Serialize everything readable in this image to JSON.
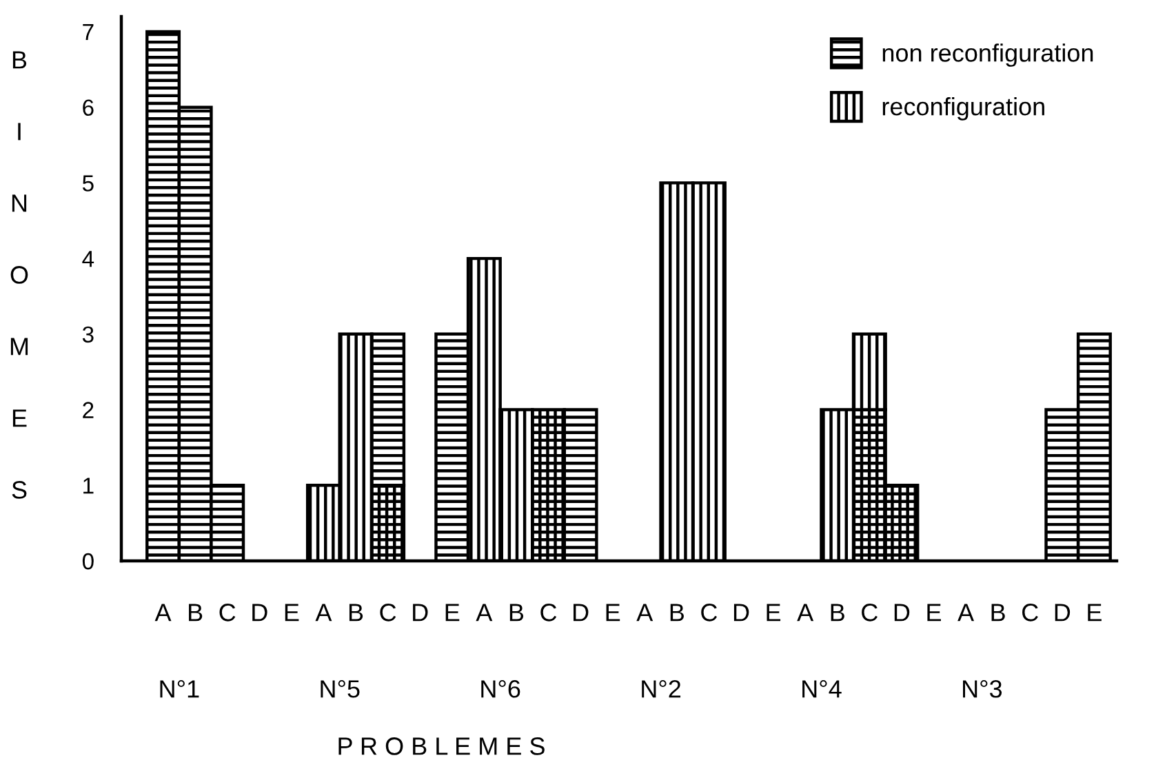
{
  "chart_data": {
    "type": "bar",
    "stacked": true,
    "ylabel": "BINOMES",
    "xlabel": "P R O B L E M E S",
    "categories": [
      "A",
      "B",
      "C",
      "D",
      "E",
      "A",
      "B",
      "C",
      "D",
      "E",
      "A",
      "B",
      "C",
      "D",
      "E",
      "A",
      "B",
      "C",
      "D",
      "E",
      "A",
      "B",
      "C",
      "D",
      "E",
      "A",
      "B",
      "C",
      "D",
      "E"
    ],
    "annotations": [
      "N°1",
      "N°5",
      "N°6",
      "N°2",
      "N°4",
      "N°3"
    ],
    "series": [
      {
        "color": "#000000",
        "values": [
          0,
          0,
          0,
          0,
          0,
          0,
          0,
          1,
          0,
          0,
          0,
          0,
          2,
          0,
          0,
          0,
          0,
          0,
          0,
          0,
          0,
          0,
          2,
          1,
          0,
          0,
          0,
          0,
          0,
          0
        ]
      },
      {
        "name": "non reconfiguration",
        "color": "#000000",
        "values": [
          7,
          6,
          1,
          0,
          0,
          0,
          0,
          2,
          0,
          3,
          0,
          0,
          0,
          2,
          0,
          0,
          0,
          0,
          0,
          0,
          0,
          0,
          0,
          0,
          0,
          0,
          0,
          0,
          2,
          3
        ]
      },
      {
        "name": "reconfiguration",
        "color": "#000000",
        "values": [
          0,
          0,
          0,
          0,
          0,
          1,
          3,
          0,
          0,
          0,
          4,
          2,
          0,
          0,
          0,
          0,
          5,
          5,
          0,
          0,
          0,
          2,
          1,
          0,
          0,
          0,
          0,
          0,
          0,
          0
        ]
      }
    ],
    "ylim": [
      0,
      7.2
    ],
    "yticks": [
      0,
      1,
      2,
      3,
      4,
      5,
      6,
      7
    ],
    "grid": false,
    "legend": "top right"
  }
}
